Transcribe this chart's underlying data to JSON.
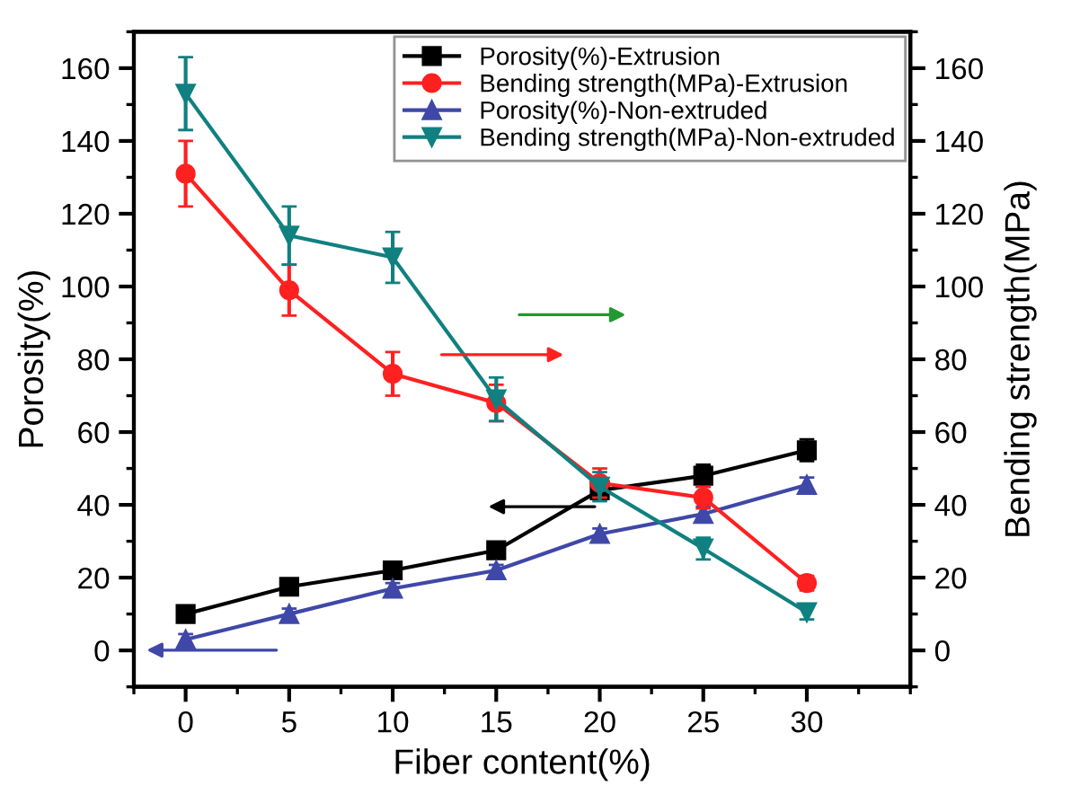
{
  "chart_data": {
    "type": "line",
    "xlabel": "Fiber content(%)",
    "ylabel": "Porosity(%)",
    "y2label": "Bending strength(MPa)",
    "x": [
      0,
      5,
      10,
      15,
      20,
      25,
      30
    ],
    "xlim": [
      -2.5,
      35
    ],
    "xticks": [
      0,
      5,
      10,
      15,
      20,
      25,
      30
    ],
    "ylim": [
      -10,
      170
    ],
    "yticks": [
      0,
      20,
      40,
      60,
      80,
      100,
      120,
      140,
      160
    ],
    "y2lim": [
      -10,
      170
    ],
    "y2ticks": [
      0,
      20,
      40,
      60,
      80,
      100,
      120,
      140,
      160
    ],
    "legend": "top right",
    "grid": false,
    "series": [
      {
        "name": "Porosity(%)-Extrusion",
        "color": "#000000",
        "marker": "square",
        "values": [
          10,
          17.5,
          22,
          27.5,
          44,
          48,
          55
        ],
        "errors": [
          2,
          2,
          2,
          2,
          2,
          3,
          3
        ]
      },
      {
        "name": "Bending strength(MPa)-Extrusion",
        "color": "#ff2020",
        "marker": "circle",
        "axis": "y2",
        "values": [
          131,
          99,
          76,
          68,
          46,
          42,
          18.5
        ],
        "errors": [
          9,
          7,
          6,
          5,
          4,
          3,
          2
        ]
      },
      {
        "name": "Porosity(%)-Non-extruded",
        "color": "#3f48a8",
        "marker": "triangle",
        "values": [
          3,
          10,
          17,
          22,
          32,
          37.5,
          45.5
        ],
        "errors": [
          1.5,
          1.5,
          1.5,
          1.5,
          1.5,
          2,
          2
        ]
      },
      {
        "name": "Bending strength(MPa)-Non-extruded",
        "color": "#108080",
        "marker": "triangle_down",
        "axis": "y2",
        "values": [
          153,
          114,
          108,
          69,
          45,
          28,
          10.5
        ],
        "errors": [
          10,
          8,
          7,
          6,
          4,
          3,
          2
        ]
      }
    ]
  }
}
